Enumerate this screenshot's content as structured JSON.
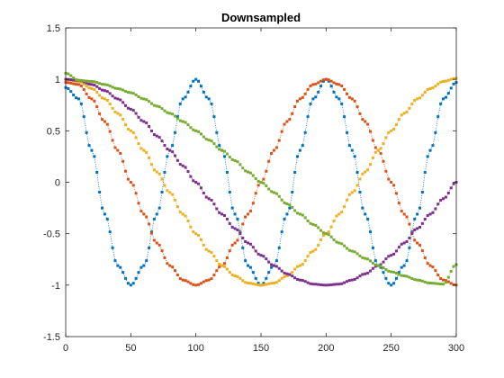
{
  "chart_data": {
    "type": "scatter",
    "title": "Downsampled",
    "xlabel": "",
    "ylabel": "",
    "xlim": [
      0,
      300
    ],
    "ylim": [
      -1.5,
      1.5
    ],
    "x_ticks": [
      "0",
      "50",
      "100",
      "150",
      "200",
      "250",
      "300"
    ],
    "y_ticks": [
      "1.5",
      "1",
      "0.5",
      "0",
      "-0.5",
      "-1",
      "-1.5"
    ],
    "grid": false,
    "legend": "none",
    "x_step": 2,
    "series": [
      {
        "color": "#0072BD",
        "marker": "square",
        "linestyle": "dotted",
        "x": [
          0,
          10,
          20,
          30,
          40,
          50,
          60,
          70,
          80,
          90,
          100,
          110,
          120,
          130,
          140,
          150,
          160,
          170,
          180,
          190,
          200,
          210,
          220,
          230,
          240,
          250,
          260,
          270,
          280,
          290,
          300
        ],
        "y": [
          0.92,
          0.81,
          0.31,
          -0.31,
          -0.81,
          -1.0,
          -0.81,
          -0.31,
          0.31,
          0.81,
          1.0,
          0.81,
          0.31,
          -0.31,
          -0.81,
          -1.0,
          -0.81,
          -0.31,
          0.31,
          0.81,
          1.0,
          0.81,
          0.31,
          -0.31,
          -0.81,
          -1.0,
          -0.81,
          -0.31,
          0.31,
          0.81,
          0.97
        ]
      },
      {
        "color": "#D95319",
        "marker": "square",
        "linestyle": "dotted",
        "x": [
          0,
          10,
          20,
          30,
          40,
          50,
          60,
          70,
          80,
          90,
          100,
          110,
          120,
          130,
          140,
          150,
          160,
          170,
          180,
          190,
          200,
          210,
          220,
          230,
          240,
          250,
          260,
          270,
          280,
          290,
          300
        ],
        "y": [
          0.97,
          0.95,
          0.81,
          0.59,
          0.31,
          0.0,
          -0.31,
          -0.59,
          -0.81,
          -0.95,
          -1.0,
          -0.95,
          -0.81,
          -0.59,
          -0.31,
          0.0,
          0.31,
          0.59,
          0.81,
          0.95,
          1.0,
          0.95,
          0.81,
          0.59,
          0.31,
          0.0,
          -0.31,
          -0.59,
          -0.81,
          -0.95,
          -1.0
        ]
      },
      {
        "color": "#EDB120",
        "marker": "square",
        "linestyle": "dotted",
        "x": [
          0,
          10,
          20,
          30,
          40,
          50,
          60,
          70,
          80,
          90,
          100,
          110,
          120,
          130,
          140,
          150,
          160,
          170,
          180,
          190,
          200,
          210,
          220,
          230,
          240,
          250,
          260,
          270,
          280,
          290,
          300
        ],
        "y": [
          1.0,
          0.98,
          0.91,
          0.81,
          0.67,
          0.5,
          0.31,
          0.1,
          -0.1,
          -0.31,
          -0.5,
          -0.67,
          -0.81,
          -0.91,
          -0.98,
          -1.0,
          -0.98,
          -0.91,
          -0.81,
          -0.67,
          -0.5,
          -0.31,
          -0.1,
          0.1,
          0.31,
          0.5,
          0.67,
          0.81,
          0.91,
          0.98,
          1.01
        ]
      },
      {
        "color": "#7E2F8E",
        "marker": "square",
        "linestyle": "dotted",
        "x": [
          0,
          10,
          20,
          30,
          40,
          50,
          60,
          70,
          80,
          90,
          100,
          110,
          120,
          130,
          140,
          150,
          160,
          170,
          180,
          190,
          200,
          210,
          220,
          230,
          240,
          250,
          260,
          270,
          280,
          290,
          300
        ],
        "y": [
          1.0,
          0.99,
          0.95,
          0.89,
          0.81,
          0.71,
          0.59,
          0.45,
          0.31,
          0.16,
          0.0,
          -0.16,
          -0.31,
          -0.45,
          -0.59,
          -0.71,
          -0.81,
          -0.89,
          -0.95,
          -0.99,
          -1.0,
          -0.99,
          -0.95,
          -0.89,
          -0.81,
          -0.71,
          -0.59,
          -0.45,
          -0.31,
          -0.16,
          0.0
        ]
      },
      {
        "color": "#77AC30",
        "marker": "square",
        "linestyle": "dotted",
        "x": [
          0,
          10,
          20,
          30,
          40,
          50,
          60,
          70,
          80,
          90,
          100,
          110,
          120,
          130,
          140,
          150,
          160,
          170,
          180,
          190,
          200,
          210,
          220,
          230,
          240,
          250,
          260,
          270,
          280,
          290,
          300
        ],
        "y": [
          1.06,
          0.99,
          0.98,
          0.95,
          0.91,
          0.87,
          0.81,
          0.74,
          0.67,
          0.59,
          0.5,
          0.41,
          0.31,
          0.21,
          0.1,
          0.0,
          -0.1,
          -0.21,
          -0.31,
          -0.41,
          -0.5,
          -0.59,
          -0.67,
          -0.74,
          -0.81,
          -0.87,
          -0.91,
          -0.95,
          -0.98,
          -0.99,
          -0.8
        ]
      }
    ]
  }
}
